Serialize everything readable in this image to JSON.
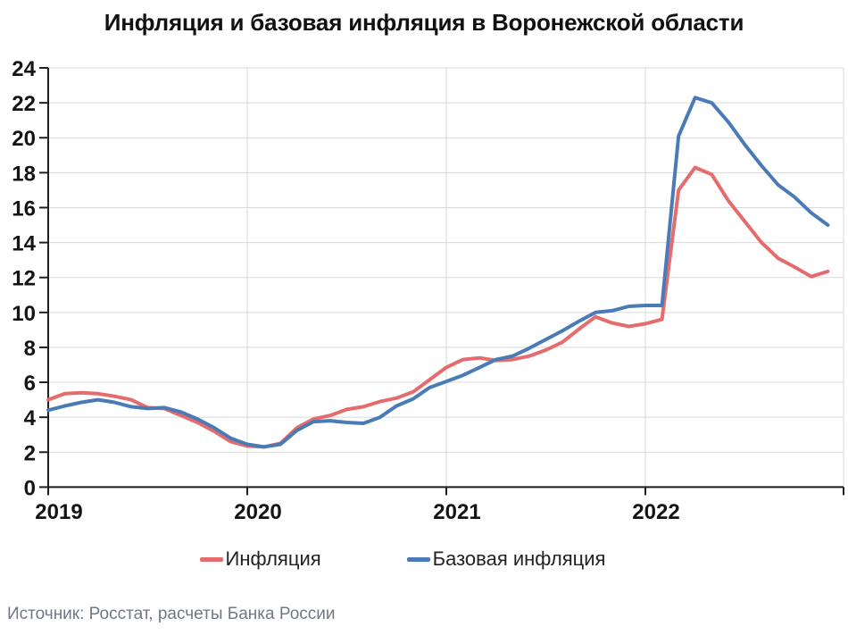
{
  "title": "Инфляция и базовая инфляция в Воронежской области",
  "source_note": "Источник: Росстат, расчеты Банка России",
  "legend": [
    {
      "label": "Инфляция",
      "color": "#e66b6d"
    },
    {
      "label": "Базовая инфляция",
      "color": "#4a7bb7"
    }
  ],
  "colors": {
    "inflation_line": "#e66b6d",
    "core_inflation_line": "#4a7bb7",
    "grid": "#d9d9d9",
    "axis": "#1f1f1f",
    "source_text": "#6e7887"
  },
  "chart_data": {
    "type": "line",
    "title": "Инфляция и базовая инфляция в Воронежской области",
    "x_start": "2019-01",
    "x_end": "2022-12",
    "x_interval": "month",
    "x_axis": {
      "tick_labels": [
        "2019",
        "2020",
        "2021",
        "2022"
      ],
      "ticks_every_months": 12
    },
    "y_axis": {
      "ticks": [
        0,
        2,
        4,
        6,
        8,
        10,
        12,
        14,
        16,
        18,
        20,
        22,
        24
      ]
    },
    "ylim": [
      0,
      24
    ],
    "grid": true,
    "legend_position": "bottom",
    "series": [
      {
        "name": "Инфляция",
        "color": "#e66b6d",
        "values": [
          5.0,
          5.35,
          5.4,
          5.35,
          5.2,
          5.0,
          4.55,
          4.5,
          4.1,
          3.7,
          3.2,
          2.6,
          2.35,
          2.3,
          2.5,
          3.4,
          3.9,
          4.1,
          4.45,
          4.6,
          4.9,
          5.1,
          5.45,
          6.15,
          6.85,
          7.3,
          7.4,
          7.25,
          7.3,
          7.5,
          7.85,
          8.3,
          9.05,
          9.75,
          9.4,
          9.2,
          9.35,
          9.6,
          17.0,
          18.3,
          17.9,
          16.4,
          15.2,
          14.0,
          13.1,
          12.6,
          12.05,
          12.35
        ]
      },
      {
        "name": "Базовая инфляция",
        "color": "#4a7bb7",
        "values": [
          4.4,
          4.65,
          4.85,
          5.0,
          4.85,
          4.6,
          4.5,
          4.55,
          4.3,
          3.9,
          3.4,
          2.8,
          2.45,
          2.3,
          2.45,
          3.25,
          3.75,
          3.8,
          3.7,
          3.65,
          4.0,
          4.65,
          5.05,
          5.7,
          6.05,
          6.4,
          6.85,
          7.3,
          7.5,
          7.95,
          8.45,
          8.95,
          9.5,
          10.0,
          10.1,
          10.35,
          10.4,
          10.4,
          20.1,
          22.3,
          22.0,
          20.9,
          19.6,
          18.4,
          17.3,
          16.6,
          15.7,
          15.0
        ]
      }
    ]
  }
}
